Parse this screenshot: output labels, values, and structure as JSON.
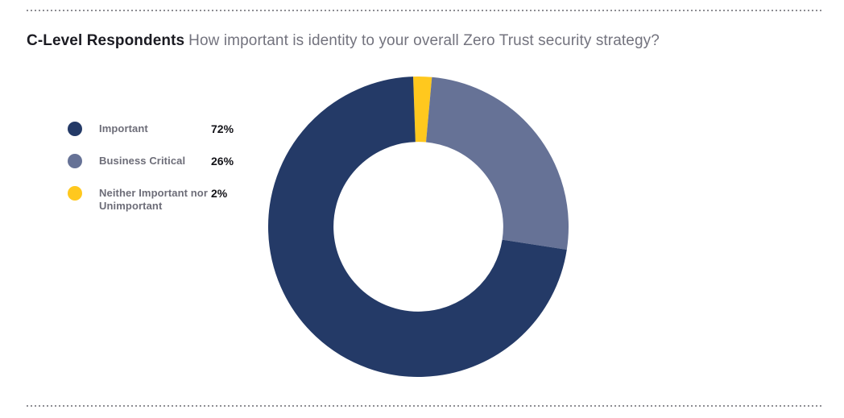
{
  "header": {
    "title_emphasis": "C-Level Respondents",
    "title_question": "How important is identity to your overall Zero Trust security strategy?"
  },
  "legend": {
    "items": [
      {
        "label": "Important",
        "value": "72%",
        "color": "#243a67"
      },
      {
        "label": "Business Critical",
        "value": "26%",
        "color": "#667296"
      },
      {
        "label": "Neither Important nor Unimportant",
        "value": "2%",
        "color": "#ffc81e"
      }
    ]
  },
  "chart_data": {
    "type": "pie",
    "subtype": "donut",
    "title": "C-Level Respondents: How important is identity to your overall Zero Trust security strategy?",
    "categories": [
      "Important",
      "Business Critical",
      "Neither Important nor Unimportant"
    ],
    "values": [
      72,
      26,
      2
    ],
    "value_labels": [
      "72%",
      "26%",
      "2%"
    ],
    "unit": "percent",
    "colors": [
      "#243a67",
      "#667296",
      "#ffc81e"
    ],
    "legend_position": "left",
    "donut_hole_ratio": 0.565,
    "start_angle_deg": -2,
    "clockwise_order_from_top": [
      "Neither Important nor Unimportant",
      "Business Critical",
      "Important"
    ]
  },
  "style": {
    "background": "#ffffff",
    "title_color": "#1b1b22",
    "subtitle_color": "#73737e",
    "legend_label_color": "#6d6d78",
    "legend_value_color": "#131318",
    "dotted_rule_color": "#8e8e93"
  }
}
